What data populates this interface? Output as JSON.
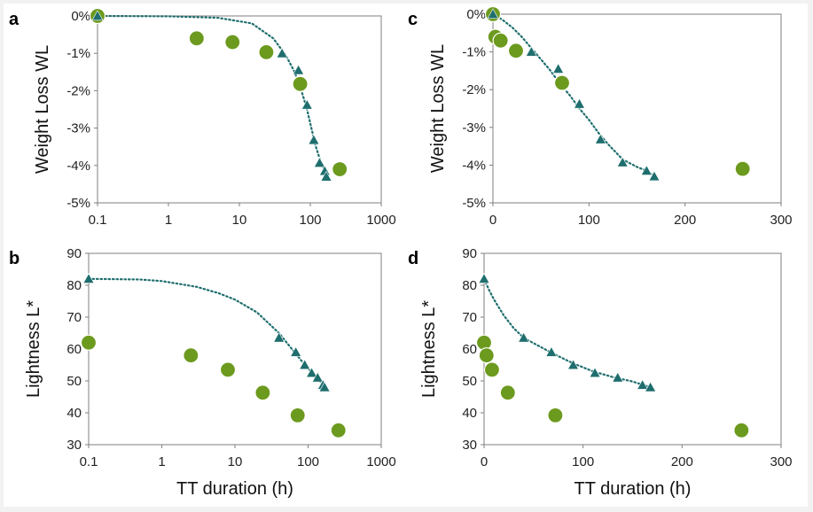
{
  "colors": {
    "triangle": "#1f6e6e",
    "circle": "#6c9a1e",
    "circle_edge": "#ffffff",
    "fit": "#1f6e6e",
    "axis": "#7f7f7f",
    "background": "#f2f2f2"
  },
  "chart_data": [
    {
      "type": "scatter",
      "panel": "a",
      "x_scale": "log",
      "xlim": [
        0.1,
        1000
      ],
      "ylim": [
        -5,
        0
      ],
      "xticks": [
        "0.1",
        "1",
        "10",
        "100",
        "1000"
      ],
      "yticks": [
        "0%",
        "-1%",
        "-2%",
        "-3%",
        "-4%",
        "-5%"
      ],
      "xlabel": "",
      "ylabel": "Weight Loss WL",
      "grid": false,
      "triangles": [
        [
          0.1,
          0
        ],
        [
          40,
          -1.0
        ],
        [
          68,
          -1.45
        ],
        [
          90,
          -2.38
        ],
        [
          112,
          -3.32
        ],
        [
          135,
          -3.93
        ],
        [
          160,
          -4.15
        ],
        [
          168,
          -4.3
        ]
      ],
      "circles": [
        [
          0.1,
          0
        ],
        [
          2.5,
          -0.6
        ],
        [
          8,
          -0.7
        ],
        [
          24,
          -0.97
        ],
        [
          72,
          -1.82
        ],
        [
          260,
          -4.1
        ]
      ],
      "fit_line": [
        [
          0.1,
          0
        ],
        [
          1,
          -0.01
        ],
        [
          5,
          -0.05
        ],
        [
          15,
          -0.2
        ],
        [
          30,
          -0.6
        ],
        [
          45,
          -1.05
        ],
        [
          60,
          -1.5
        ],
        [
          75,
          -2.0
        ],
        [
          90,
          -2.5
        ],
        [
          105,
          -3.05
        ],
        [
          120,
          -3.5
        ],
        [
          140,
          -3.9
        ],
        [
          160,
          -4.15
        ],
        [
          170,
          -4.28
        ]
      ]
    },
    {
      "type": "scatter",
      "panel": "b",
      "x_scale": "log",
      "xlim": [
        0.1,
        1000
      ],
      "ylim": [
        30,
        90
      ],
      "xticks": [
        "0.1",
        "1",
        "10",
        "100",
        "1000"
      ],
      "yticks": [
        "90",
        "80",
        "70",
        "60",
        "50",
        "40",
        "30"
      ],
      "xlabel": "TT duration (h)",
      "ylabel": "Lightness L*",
      "grid": false,
      "triangles": [
        [
          0.1,
          82
        ],
        [
          40,
          63.5
        ],
        [
          68,
          59
        ],
        [
          90,
          55
        ],
        [
          112,
          52.5
        ],
        [
          135,
          51
        ],
        [
          160,
          48.7
        ],
        [
          168,
          48
        ]
      ],
      "circles": [
        [
          0.1,
          62
        ],
        [
          2.5,
          58
        ],
        [
          8,
          53.5
        ],
        [
          24,
          46.3
        ],
        [
          72,
          39.2
        ],
        [
          260,
          34.5
        ]
      ],
      "fit_line": [
        [
          0.1,
          82
        ],
        [
          0.5,
          81.8
        ],
        [
          1,
          81.3
        ],
        [
          3,
          79.5
        ],
        [
          6,
          77.5
        ],
        [
          10,
          75.5
        ],
        [
          20,
          71.5
        ],
        [
          40,
          65
        ],
        [
          60,
          60
        ],
        [
          80,
          56.5
        ],
        [
          100,
          54
        ],
        [
          130,
          51
        ],
        [
          160,
          48.8
        ],
        [
          170,
          48
        ]
      ]
    },
    {
      "type": "scatter",
      "panel": "c",
      "x_scale": "linear",
      "xlim": [
        0,
        300
      ],
      "ylim": [
        -5,
        0
      ],
      "xticks": [
        "0",
        "100",
        "200",
        "300"
      ],
      "yticks": [
        "0%",
        "-1%",
        "-2%",
        "-3%",
        "-4%",
        "-5%"
      ],
      "xlabel": "",
      "ylabel": "Weight Loss WL",
      "grid": false,
      "triangles": [
        [
          0,
          0
        ],
        [
          40,
          -1.0
        ],
        [
          68,
          -1.45
        ],
        [
          90,
          -2.38
        ],
        [
          112,
          -3.32
        ],
        [
          135,
          -3.93
        ],
        [
          160,
          -4.15
        ],
        [
          168,
          -4.3
        ]
      ],
      "circles": [
        [
          0,
          0
        ],
        [
          2.5,
          -0.6
        ],
        [
          8,
          -0.7
        ],
        [
          24,
          -0.97
        ],
        [
          72,
          -1.82
        ],
        [
          260,
          -4.1
        ]
      ],
      "fit_line": [
        [
          0,
          0
        ],
        [
          10,
          -0.15
        ],
        [
          20,
          -0.35
        ],
        [
          30,
          -0.6
        ],
        [
          40,
          -0.9
        ],
        [
          50,
          -1.2
        ],
        [
          60,
          -1.5
        ],
        [
          70,
          -1.85
        ],
        [
          80,
          -2.15
        ],
        [
          90,
          -2.5
        ],
        [
          100,
          -2.8
        ],
        [
          110,
          -3.15
        ],
        [
          120,
          -3.45
        ],
        [
          135,
          -3.85
        ],
        [
          150,
          -4.05
        ],
        [
          160,
          -4.15
        ],
        [
          168,
          -4.3
        ]
      ]
    },
    {
      "type": "scatter",
      "panel": "d",
      "x_scale": "linear",
      "xlim": [
        0,
        300
      ],
      "ylim": [
        30,
        90
      ],
      "xticks": [
        "0",
        "100",
        "200",
        "300"
      ],
      "yticks": [
        "90",
        "80",
        "70",
        "60",
        "50",
        "40",
        "30"
      ],
      "xlabel": "TT duration (h)",
      "ylabel": "Lightness L*",
      "grid": false,
      "triangles": [
        [
          0,
          82
        ],
        [
          40,
          63.5
        ],
        [
          68,
          59
        ],
        [
          90,
          55
        ],
        [
          112,
          52.5
        ],
        [
          135,
          51
        ],
        [
          160,
          48.7
        ],
        [
          168,
          48
        ]
      ],
      "circles": [
        [
          0,
          62
        ],
        [
          2.5,
          58
        ],
        [
          8,
          53.5
        ],
        [
          24,
          46.3
        ],
        [
          72,
          39.2
        ],
        [
          260,
          34.5
        ]
      ],
      "fit_line": [
        [
          0,
          82
        ],
        [
          5,
          78.5
        ],
        [
          10,
          75.5
        ],
        [
          20,
          70.5
        ],
        [
          30,
          66.5
        ],
        [
          40,
          63.5
        ],
        [
          55,
          61
        ],
        [
          70,
          58.5
        ],
        [
          90,
          55.5
        ],
        [
          110,
          53
        ],
        [
          130,
          51.2
        ],
        [
          150,
          49.8
        ],
        [
          168,
          48
        ]
      ]
    }
  ]
}
